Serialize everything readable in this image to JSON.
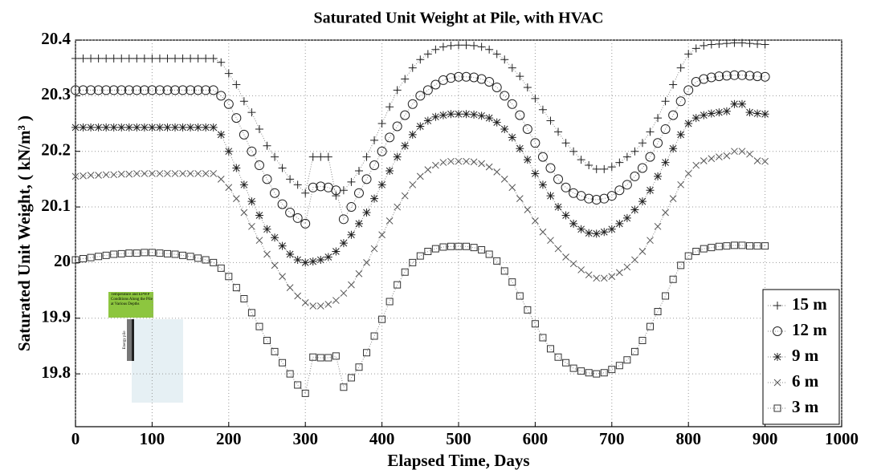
{
  "chart_data": {
    "type": "line",
    "title": "Saturated Unit Weight at  Pile, with HVAC",
    "x_label": "Elapsed Time, Days",
    "y_label": "Saturated Unit Weight, ( kN/m³ )",
    "xlim": [
      0,
      1000
    ],
    "xticks": [
      0,
      100,
      200,
      300,
      400,
      500,
      600,
      700,
      800,
      900,
      1000
    ],
    "ylim": [
      19.705,
      20.4
    ],
    "yticks": [
      19.8,
      19.9,
      20,
      20.1,
      20.2,
      20.3,
      20.4
    ],
    "grid": true,
    "legend": "lower right",
    "x": [
      0,
      10,
      20,
      30,
      40,
      50,
      60,
      70,
      80,
      90,
      100,
      110,
      120,
      130,
      140,
      150,
      160,
      170,
      180,
      190,
      200,
      210,
      220,
      230,
      240,
      250,
      260,
      270,
      280,
      290,
      300,
      310,
      320,
      330,
      340,
      350,
      360,
      370,
      380,
      390,
      400,
      410,
      420,
      430,
      440,
      450,
      460,
      470,
      480,
      490,
      500,
      510,
      520,
      530,
      540,
      550,
      560,
      570,
      580,
      590,
      600,
      610,
      620,
      630,
      640,
      650,
      660,
      670,
      680,
      690,
      700,
      710,
      720,
      730,
      740,
      750,
      760,
      770,
      780,
      790,
      800,
      810,
      820,
      830,
      840,
      850,
      860,
      870,
      880,
      890,
      900
    ],
    "series": [
      {
        "name": "15 m",
        "marker": "plus",
        "color": "#222222",
        "values": [
          20.367,
          20.367,
          20.367,
          20.367,
          20.367,
          20.367,
          20.367,
          20.367,
          20.367,
          20.367,
          20.367,
          20.367,
          20.367,
          20.367,
          20.367,
          20.367,
          20.367,
          20.367,
          20.367,
          20.36,
          20.34,
          20.32,
          20.29,
          20.27,
          20.24,
          20.21,
          20.19,
          20.17,
          20.15,
          20.14,
          20.125,
          20.19,
          20.19,
          20.19,
          20.12,
          20.13,
          20.145,
          20.165,
          20.19,
          20.22,
          20.25,
          20.28,
          20.31,
          20.33,
          20.35,
          20.365,
          20.375,
          20.383,
          20.388,
          20.39,
          20.391,
          20.391,
          20.39,
          20.388,
          20.383,
          20.375,
          20.365,
          20.35,
          20.335,
          20.315,
          20.295,
          20.275,
          20.255,
          20.235,
          20.215,
          20.2,
          20.185,
          20.175,
          20.168,
          20.168,
          20.172,
          20.18,
          20.19,
          20.2,
          20.215,
          20.235,
          20.26,
          20.29,
          20.32,
          20.35,
          20.375,
          20.385,
          20.39,
          20.392,
          20.393,
          20.394,
          20.395,
          20.395,
          20.394,
          20.393,
          20.392
        ]
      },
      {
        "name": "12 m",
        "marker": "circle",
        "color": "#222222",
        "values": [
          20.31,
          20.31,
          20.31,
          20.31,
          20.31,
          20.31,
          20.31,
          20.31,
          20.31,
          20.31,
          20.31,
          20.31,
          20.31,
          20.31,
          20.31,
          20.31,
          20.31,
          20.31,
          20.31,
          20.3,
          20.285,
          20.26,
          20.23,
          20.2,
          20.175,
          20.15,
          20.125,
          20.105,
          20.09,
          20.08,
          20.07,
          20.135,
          20.137,
          20.135,
          20.13,
          20.078,
          20.1,
          20.125,
          20.15,
          20.175,
          20.2,
          20.225,
          20.245,
          20.265,
          20.285,
          20.3,
          20.31,
          20.32,
          20.328,
          20.332,
          20.334,
          20.334,
          20.333,
          20.33,
          20.325,
          20.315,
          20.3,
          20.285,
          20.265,
          20.24,
          20.215,
          20.19,
          20.17,
          20.15,
          20.135,
          20.125,
          20.12,
          20.115,
          20.113,
          20.115,
          20.12,
          20.13,
          20.14,
          20.155,
          20.17,
          20.19,
          20.215,
          20.24,
          20.265,
          20.29,
          20.31,
          20.325,
          20.33,
          20.333,
          20.335,
          20.336,
          20.337,
          20.337,
          20.336,
          20.335,
          20.334
        ]
      },
      {
        "name": "9 m",
        "marker": "star",
        "color": "#222222",
        "values": [
          20.243,
          20.243,
          20.243,
          20.243,
          20.243,
          20.243,
          20.243,
          20.243,
          20.243,
          20.243,
          20.243,
          20.243,
          20.243,
          20.243,
          20.243,
          20.243,
          20.243,
          20.243,
          20.243,
          20.23,
          20.2,
          20.17,
          20.14,
          20.11,
          20.085,
          20.06,
          20.045,
          20.03,
          20.015,
          20.005,
          20.0,
          20.002,
          20.005,
          20.01,
          20.02,
          20.035,
          20.05,
          20.07,
          20.09,
          20.115,
          20.14,
          20.165,
          20.19,
          20.21,
          20.23,
          20.245,
          20.255,
          20.262,
          20.265,
          20.267,
          20.267,
          20.267,
          20.266,
          20.264,
          20.26,
          20.252,
          20.24,
          20.225,
          20.205,
          20.185,
          20.16,
          20.14,
          20.12,
          20.1,
          20.085,
          20.07,
          20.06,
          20.053,
          20.052,
          20.055,
          20.06,
          20.07,
          20.08,
          20.095,
          20.11,
          20.13,
          20.155,
          20.18,
          20.205,
          20.23,
          20.25,
          20.26,
          20.265,
          20.268,
          20.27,
          20.272,
          20.285,
          20.285,
          20.27,
          20.268,
          20.267
        ]
      },
      {
        "name": "6 m",
        "marker": "cross",
        "color": "#555555",
        "values": [
          20.155,
          20.156,
          20.157,
          20.157,
          20.158,
          20.158,
          20.159,
          20.159,
          20.16,
          20.16,
          20.16,
          20.16,
          20.16,
          20.16,
          20.16,
          20.16,
          20.16,
          20.16,
          20.16,
          20.15,
          20.135,
          20.115,
          20.09,
          20.065,
          20.04,
          20.015,
          19.995,
          19.975,
          19.955,
          19.94,
          19.928,
          19.922,
          19.922,
          19.925,
          19.932,
          19.945,
          19.96,
          19.98,
          20.0,
          20.025,
          20.05,
          20.075,
          20.1,
          20.12,
          20.14,
          20.155,
          20.167,
          20.175,
          20.18,
          20.182,
          20.182,
          20.182,
          20.181,
          20.178,
          20.172,
          20.163,
          20.15,
          20.135,
          20.115,
          20.095,
          20.075,
          20.055,
          20.04,
          20.025,
          20.01,
          19.998,
          19.987,
          19.978,
          19.972,
          19.972,
          19.975,
          19.982,
          19.992,
          20.005,
          20.02,
          20.04,
          20.065,
          20.09,
          20.115,
          20.14,
          20.16,
          20.175,
          20.183,
          20.187,
          20.19,
          20.192,
          20.2,
          20.2,
          20.195,
          20.183,
          20.182
        ]
      },
      {
        "name": "3 m",
        "marker": "square",
        "color": "#333333",
        "values": [
          20.005,
          20.007,
          20.009,
          20.011,
          20.013,
          20.015,
          20.016,
          20.017,
          20.017,
          20.018,
          20.018,
          20.017,
          20.016,
          20.015,
          20.013,
          20.011,
          20.008,
          20.005,
          20.0,
          19.99,
          19.975,
          19.955,
          19.935,
          19.91,
          19.885,
          19.86,
          19.84,
          19.82,
          19.8,
          19.78,
          19.765,
          19.83,
          19.829,
          19.829,
          19.832,
          19.776,
          19.793,
          19.812,
          19.838,
          19.868,
          19.898,
          19.93,
          19.96,
          19.983,
          20.0,
          20.012,
          20.02,
          20.025,
          20.028,
          20.029,
          20.029,
          20.029,
          20.027,
          20.023,
          20.015,
          20.003,
          19.985,
          19.965,
          19.94,
          19.915,
          19.89,
          19.865,
          19.845,
          19.83,
          19.82,
          19.81,
          19.805,
          19.802,
          19.8,
          19.802,
          19.808,
          19.815,
          19.825,
          19.84,
          19.86,
          19.885,
          19.912,
          19.94,
          19.97,
          19.995,
          20.012,
          20.02,
          20.025,
          20.027,
          20.029,
          20.03,
          20.031,
          20.031,
          20.03,
          20.03,
          20.03
        ]
      }
    ]
  },
  "inset": {
    "title": "Temperature and EPWP Conditions Along the Pile at Various Depths",
    "pile_label": "Energy pile"
  }
}
